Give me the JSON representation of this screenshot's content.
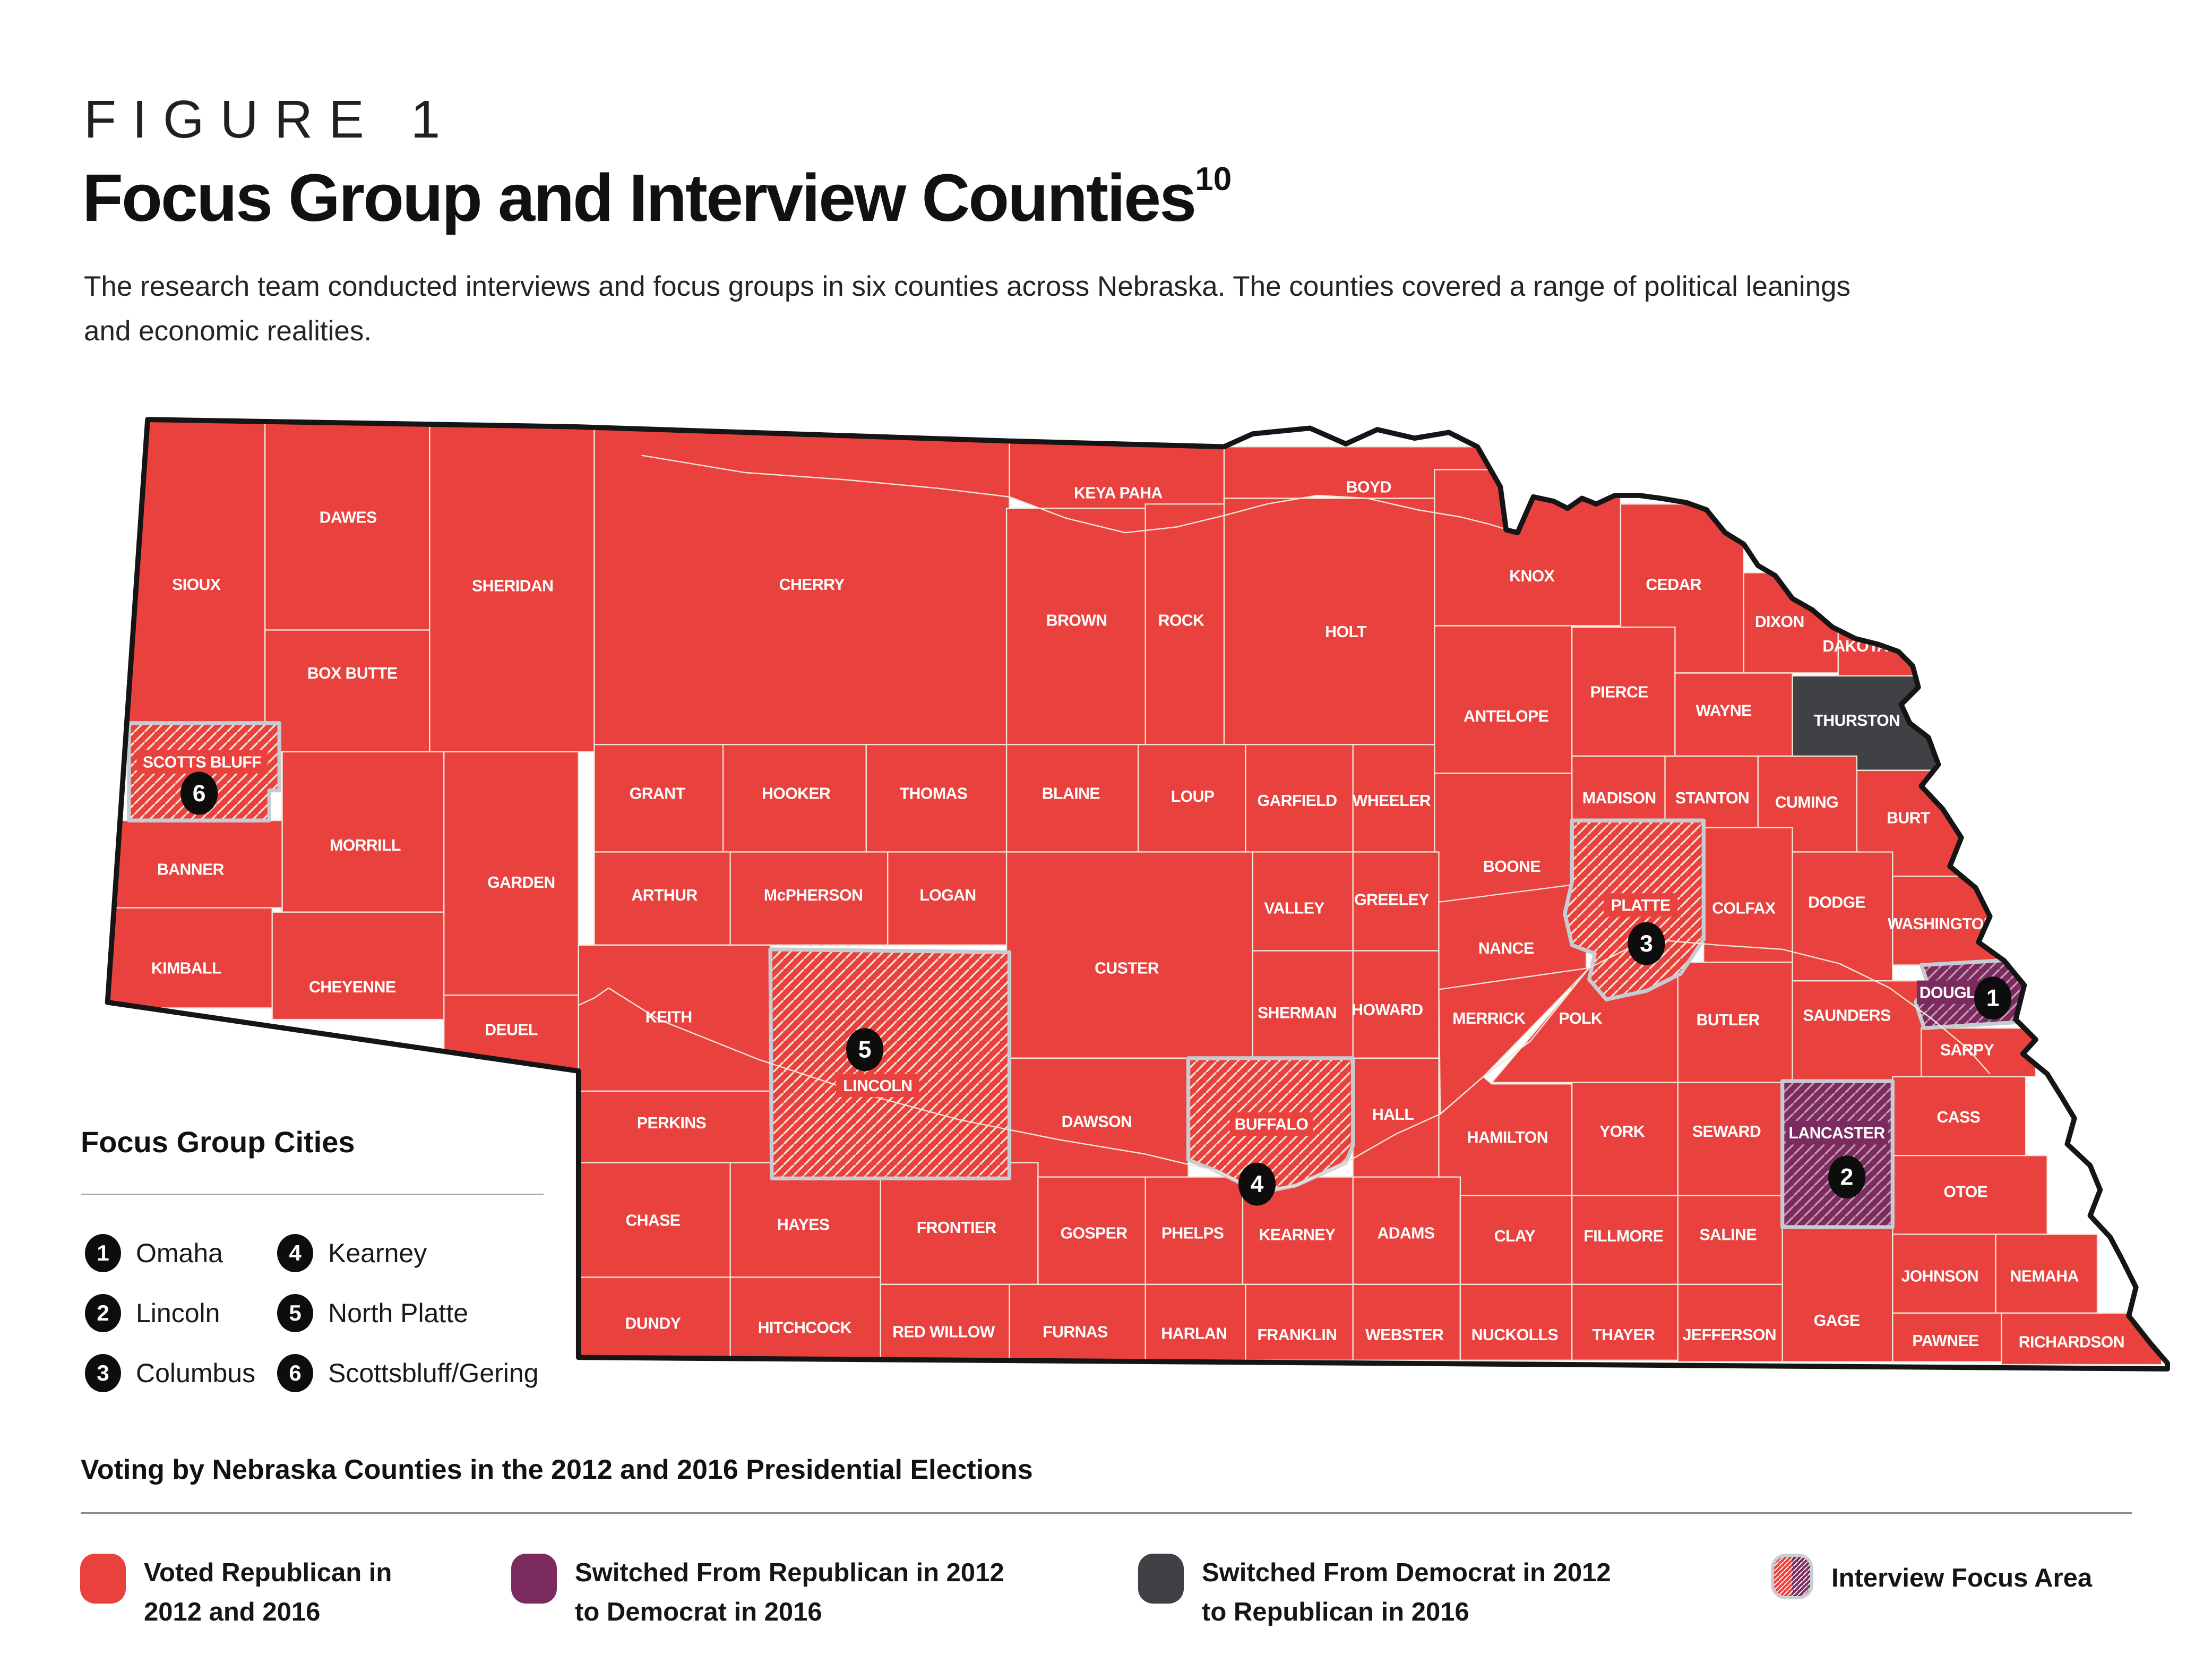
{
  "figure": {
    "label": "FIGURE 1",
    "title": "Focus Group and Interview Counties",
    "title_superscript": "10",
    "description_line1": "The research team conducted interviews and focus groups in six counties across Nebraska. The counties covered a range of political leanings",
    "description_line2": "and economic realities."
  },
  "focus_group_cities": {
    "heading": "Focus Group Cities",
    "items": [
      {
        "number": "1",
        "city": "Omaha"
      },
      {
        "number": "2",
        "city": "Lincoln"
      },
      {
        "number": "3",
        "city": "Columbus"
      },
      {
        "number": "4",
        "city": "Kearney"
      },
      {
        "number": "5",
        "city": "North Platte"
      },
      {
        "number": "6",
        "city": "Scottsbluff/Gering"
      }
    ]
  },
  "voting_legend": {
    "heading": "Voting by Nebraska Counties in the 2012 and 2016 Presidential Elections",
    "items": [
      {
        "label_line1": "Voted Republican in",
        "label_line2": "2012 and 2016",
        "type": "solid",
        "color": "#E9423E"
      },
      {
        "label_line1": "Switched From Republican in 2012",
        "label_line2": "to Democrat in 2016",
        "type": "solid",
        "color": "#7C2B5E"
      },
      {
        "label_line1": "Switched From Democrat in 2012",
        "label_line2": "to Republican in 2016",
        "type": "solid",
        "color": "#3F4145"
      },
      {
        "label_line1": "Interview Focus Area",
        "label_line2": "",
        "type": "hatched"
      }
    ]
  },
  "map": {
    "state": "Nebraska",
    "colors": {
      "republican": "#E9423E",
      "switched_to_democrat": "#7C2B5E",
      "switched_to_republican": "#3F4145",
      "county_border": "#F3E6D8",
      "focus_border": "#C7CCD2",
      "state_border": "#151515"
    },
    "counties": [
      {
        "id": "sioux",
        "name": "SIOUX",
        "category": "republican",
        "focus": false
      },
      {
        "id": "dawes",
        "name": "DAWES",
        "category": "republican",
        "focus": false
      },
      {
        "id": "boxbutte",
        "name": "BOX BUTTE",
        "category": "republican",
        "focus": false
      },
      {
        "id": "sheridan",
        "name": "SHERIDAN",
        "category": "republican",
        "focus": false
      },
      {
        "id": "cherry",
        "name": "CHERRY",
        "category": "republican",
        "focus": false
      },
      {
        "id": "keyapaha",
        "name": "KEYA PAHA",
        "category": "republican",
        "focus": false
      },
      {
        "id": "boyd",
        "name": "BOYD",
        "category": "republican",
        "focus": false
      },
      {
        "id": "brown",
        "name": "BROWN",
        "category": "republican",
        "focus": false
      },
      {
        "id": "rock",
        "name": "ROCK",
        "category": "republican",
        "focus": false
      },
      {
        "id": "holt",
        "name": "HOLT",
        "category": "republican",
        "focus": false
      },
      {
        "id": "knox",
        "name": "KNOX",
        "category": "republican",
        "focus": false
      },
      {
        "id": "cedar",
        "name": "CEDAR",
        "category": "republican",
        "focus": false
      },
      {
        "id": "dixon",
        "name": "DIXON",
        "category": "republican",
        "focus": false
      },
      {
        "id": "dakota",
        "name": "DAKOTA",
        "category": "republican",
        "focus": false
      },
      {
        "id": "antelope",
        "name": "ANTELOPE",
        "category": "republican",
        "focus": false
      },
      {
        "id": "pierce",
        "name": "PIERCE",
        "category": "republican",
        "focus": false
      },
      {
        "id": "wayne",
        "name": "WAYNE",
        "category": "republican",
        "focus": false
      },
      {
        "id": "thurston",
        "name": "THURSTON",
        "category": "switched_to_republican",
        "focus": false
      },
      {
        "id": "madison",
        "name": "MADISON",
        "category": "republican",
        "focus": false
      },
      {
        "id": "stanton",
        "name": "STANTON",
        "category": "republican",
        "focus": false
      },
      {
        "id": "cuming",
        "name": "CUMING",
        "category": "republican",
        "focus": false
      },
      {
        "id": "burt",
        "name": "BURT",
        "category": "republican",
        "focus": false
      },
      {
        "id": "morrill",
        "name": "MORRILL",
        "category": "republican",
        "focus": false
      },
      {
        "id": "banner",
        "name": "BANNER",
        "category": "republican",
        "focus": false
      },
      {
        "id": "kimball",
        "name": "KIMBALL",
        "category": "republican",
        "focus": false
      },
      {
        "id": "cheyenne",
        "name": "CHEYENNE",
        "category": "republican",
        "focus": false
      },
      {
        "id": "garden",
        "name": "GARDEN",
        "category": "republican",
        "focus": false
      },
      {
        "id": "deuel",
        "name": "DEUEL",
        "category": "republican",
        "focus": false
      },
      {
        "id": "grant",
        "name": "GRANT",
        "category": "republican",
        "focus": false
      },
      {
        "id": "hooker",
        "name": "HOOKER",
        "category": "republican",
        "focus": false
      },
      {
        "id": "thomas",
        "name": "THOMAS",
        "category": "republican",
        "focus": false
      },
      {
        "id": "blaine",
        "name": "BLAINE",
        "category": "republican",
        "focus": false
      },
      {
        "id": "loup",
        "name": "LOUP",
        "category": "republican",
        "focus": false
      },
      {
        "id": "garfield",
        "name": "GARFIELD",
        "category": "republican",
        "focus": false
      },
      {
        "id": "wheeler",
        "name": "WHEELER",
        "category": "republican",
        "focus": false
      },
      {
        "id": "boone",
        "name": "BOONE",
        "category": "republican",
        "focus": false
      },
      {
        "id": "arthur",
        "name": "ARTHUR",
        "category": "republican",
        "focus": false
      },
      {
        "id": "mcpherson",
        "name": "McPHERSON",
        "category": "republican",
        "focus": false
      },
      {
        "id": "logan",
        "name": "LOGAN",
        "category": "republican",
        "focus": false
      },
      {
        "id": "custer",
        "name": "CUSTER",
        "category": "republican",
        "focus": false
      },
      {
        "id": "valley",
        "name": "VALLEY",
        "category": "republican",
        "focus": false
      },
      {
        "id": "greeley",
        "name": "GREELEY",
        "category": "republican",
        "focus": false
      },
      {
        "id": "nance",
        "name": "NANCE",
        "category": "republican",
        "focus": false
      },
      {
        "id": "colfax",
        "name": "COLFAX",
        "category": "republican",
        "focus": false
      },
      {
        "id": "dodge",
        "name": "DODGE",
        "category": "republican",
        "focus": false
      },
      {
        "id": "washington",
        "name": "WASHINGTON",
        "category": "republican",
        "focus": false
      },
      {
        "id": "merrick",
        "name": "MERRICK",
        "category": "republican",
        "focus": false
      },
      {
        "id": "polk",
        "name": "POLK",
        "category": "republican",
        "focus": false
      },
      {
        "id": "butler",
        "name": "BUTLER",
        "category": "republican",
        "focus": false
      },
      {
        "id": "saunders",
        "name": "SAUNDERS",
        "category": "republican",
        "focus": false
      },
      {
        "id": "sarpy",
        "name": "SARPY",
        "category": "republican",
        "focus": false
      },
      {
        "id": "sherman",
        "name": "SHERMAN",
        "category": "republican",
        "focus": false
      },
      {
        "id": "howard",
        "name": "HOWARD",
        "category": "republican",
        "focus": false
      },
      {
        "id": "keith",
        "name": "KEITH",
        "category": "republican",
        "focus": false
      },
      {
        "id": "perkins",
        "name": "PERKINS",
        "category": "republican",
        "focus": false
      },
      {
        "id": "dawson",
        "name": "DAWSON",
        "category": "republican",
        "focus": false
      },
      {
        "id": "hall",
        "name": "HALL",
        "category": "republican",
        "focus": false
      },
      {
        "id": "hamilton",
        "name": "HAMILTON",
        "category": "republican",
        "focus": false
      },
      {
        "id": "york",
        "name": "YORK",
        "category": "republican",
        "focus": false
      },
      {
        "id": "seward",
        "name": "SEWARD",
        "category": "republican",
        "focus": false
      },
      {
        "id": "cass",
        "name": "CASS",
        "category": "republican",
        "focus": false
      },
      {
        "id": "otoe",
        "name": "OTOE",
        "category": "republican",
        "focus": false
      },
      {
        "id": "chase",
        "name": "CHASE",
        "category": "republican",
        "focus": false
      },
      {
        "id": "hayes",
        "name": "HAYES",
        "category": "republican",
        "focus": false
      },
      {
        "id": "frontier",
        "name": "FRONTIER",
        "category": "republican",
        "focus": false
      },
      {
        "id": "gosper",
        "name": "GOSPER",
        "category": "republican",
        "focus": false
      },
      {
        "id": "phelps",
        "name": "PHELPS",
        "category": "republican",
        "focus": false
      },
      {
        "id": "kearney",
        "name": "KEARNEY",
        "category": "republican",
        "focus": false
      },
      {
        "id": "adams",
        "name": "ADAMS",
        "category": "republican",
        "focus": false
      },
      {
        "id": "clay",
        "name": "CLAY",
        "category": "republican",
        "focus": false
      },
      {
        "id": "fillmore",
        "name": "FILLMORE",
        "category": "republican",
        "focus": false
      },
      {
        "id": "saline",
        "name": "SALINE",
        "category": "republican",
        "focus": false
      },
      {
        "id": "gage",
        "name": "GAGE",
        "category": "republican",
        "focus": false
      },
      {
        "id": "johnson",
        "name": "JOHNSON",
        "category": "republican",
        "focus": false
      },
      {
        "id": "nemaha",
        "name": "NEMAHA",
        "category": "republican",
        "focus": false
      },
      {
        "id": "pawnee",
        "name": "PAWNEE",
        "category": "republican",
        "focus": false
      },
      {
        "id": "richardson",
        "name": "RICHARDSON",
        "category": "republican",
        "focus": false
      },
      {
        "id": "dundy",
        "name": "DUNDY",
        "category": "republican",
        "focus": false
      },
      {
        "id": "hitchcock",
        "name": "HITCHCOCK",
        "category": "republican",
        "focus": false
      },
      {
        "id": "redwillow",
        "name": "RED WILLOW",
        "category": "republican",
        "focus": false
      },
      {
        "id": "furnas",
        "name": "FURNAS",
        "category": "republican",
        "focus": false
      },
      {
        "id": "harlan",
        "name": "HARLAN",
        "category": "republican",
        "focus": false
      },
      {
        "id": "franklin",
        "name": "FRANKLIN",
        "category": "republican",
        "focus": false
      },
      {
        "id": "webster",
        "name": "WEBSTER",
        "category": "republican",
        "focus": false
      },
      {
        "id": "nuckolls",
        "name": "NUCKOLLS",
        "category": "republican",
        "focus": false
      },
      {
        "id": "thayer",
        "name": "THAYER",
        "category": "republican",
        "focus": false
      },
      {
        "id": "jefferson",
        "name": "JEFFERSON",
        "category": "republican",
        "focus": false
      },
      {
        "id": "scottsbluff",
        "name": "SCOTTS BLUFF",
        "category": "republican",
        "focus": true
      },
      {
        "id": "lincoln",
        "name": "LINCOLN",
        "category": "republican",
        "focus": true
      },
      {
        "id": "buffalo",
        "name": "BUFFALO",
        "category": "republican",
        "focus": true
      },
      {
        "id": "platte",
        "name": "PLATTE",
        "category": "republican",
        "focus": true
      },
      {
        "id": "douglas",
        "name": "DOUGLAS",
        "category": "switched_to_democrat",
        "focus": true
      },
      {
        "id": "lancaster",
        "name": "LANCASTER",
        "category": "switched_to_democrat",
        "focus": true
      }
    ],
    "markers": [
      {
        "number": "1",
        "county": "douglas",
        "city": "Omaha"
      },
      {
        "number": "2",
        "county": "lancaster",
        "city": "Lincoln"
      },
      {
        "number": "3",
        "county": "platte",
        "city": "Columbus"
      },
      {
        "number": "4",
        "county": "buffalo",
        "city": "Kearney"
      },
      {
        "number": "5",
        "county": "lincoln",
        "city": "North Platte"
      },
      {
        "number": "6",
        "county": "scottsbluff",
        "city": "Scottsbluff/Gering"
      }
    ]
  }
}
